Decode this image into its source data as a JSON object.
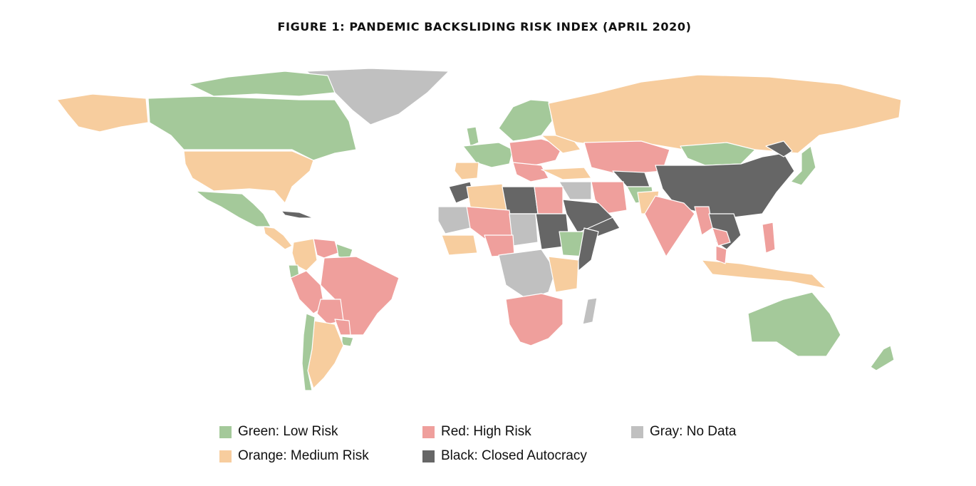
{
  "title": "FIGURE 1: PANDEMIC BACKSLIDING RISK INDEX (APRIL 2020)",
  "colors": {
    "green": "#a4c99a",
    "orange": "#f7cd9e",
    "red": "#ef9f9c",
    "gray": "#c0c0c0",
    "black": "#666666",
    "border": "#ffffff"
  },
  "legend": [
    {
      "label": "Green: Low Risk",
      "color": "#a4c99a"
    },
    {
      "label": "Red: High Risk",
      "color": "#ef9f9c"
    },
    {
      "label": "Gray: No Data",
      "color": "#c0c0c0"
    },
    {
      "label": "Orange: Medium Risk",
      "color": "#f7cd9e"
    },
    {
      "label": "Black: Closed Autocracy",
      "color": "#666666"
    }
  ]
}
